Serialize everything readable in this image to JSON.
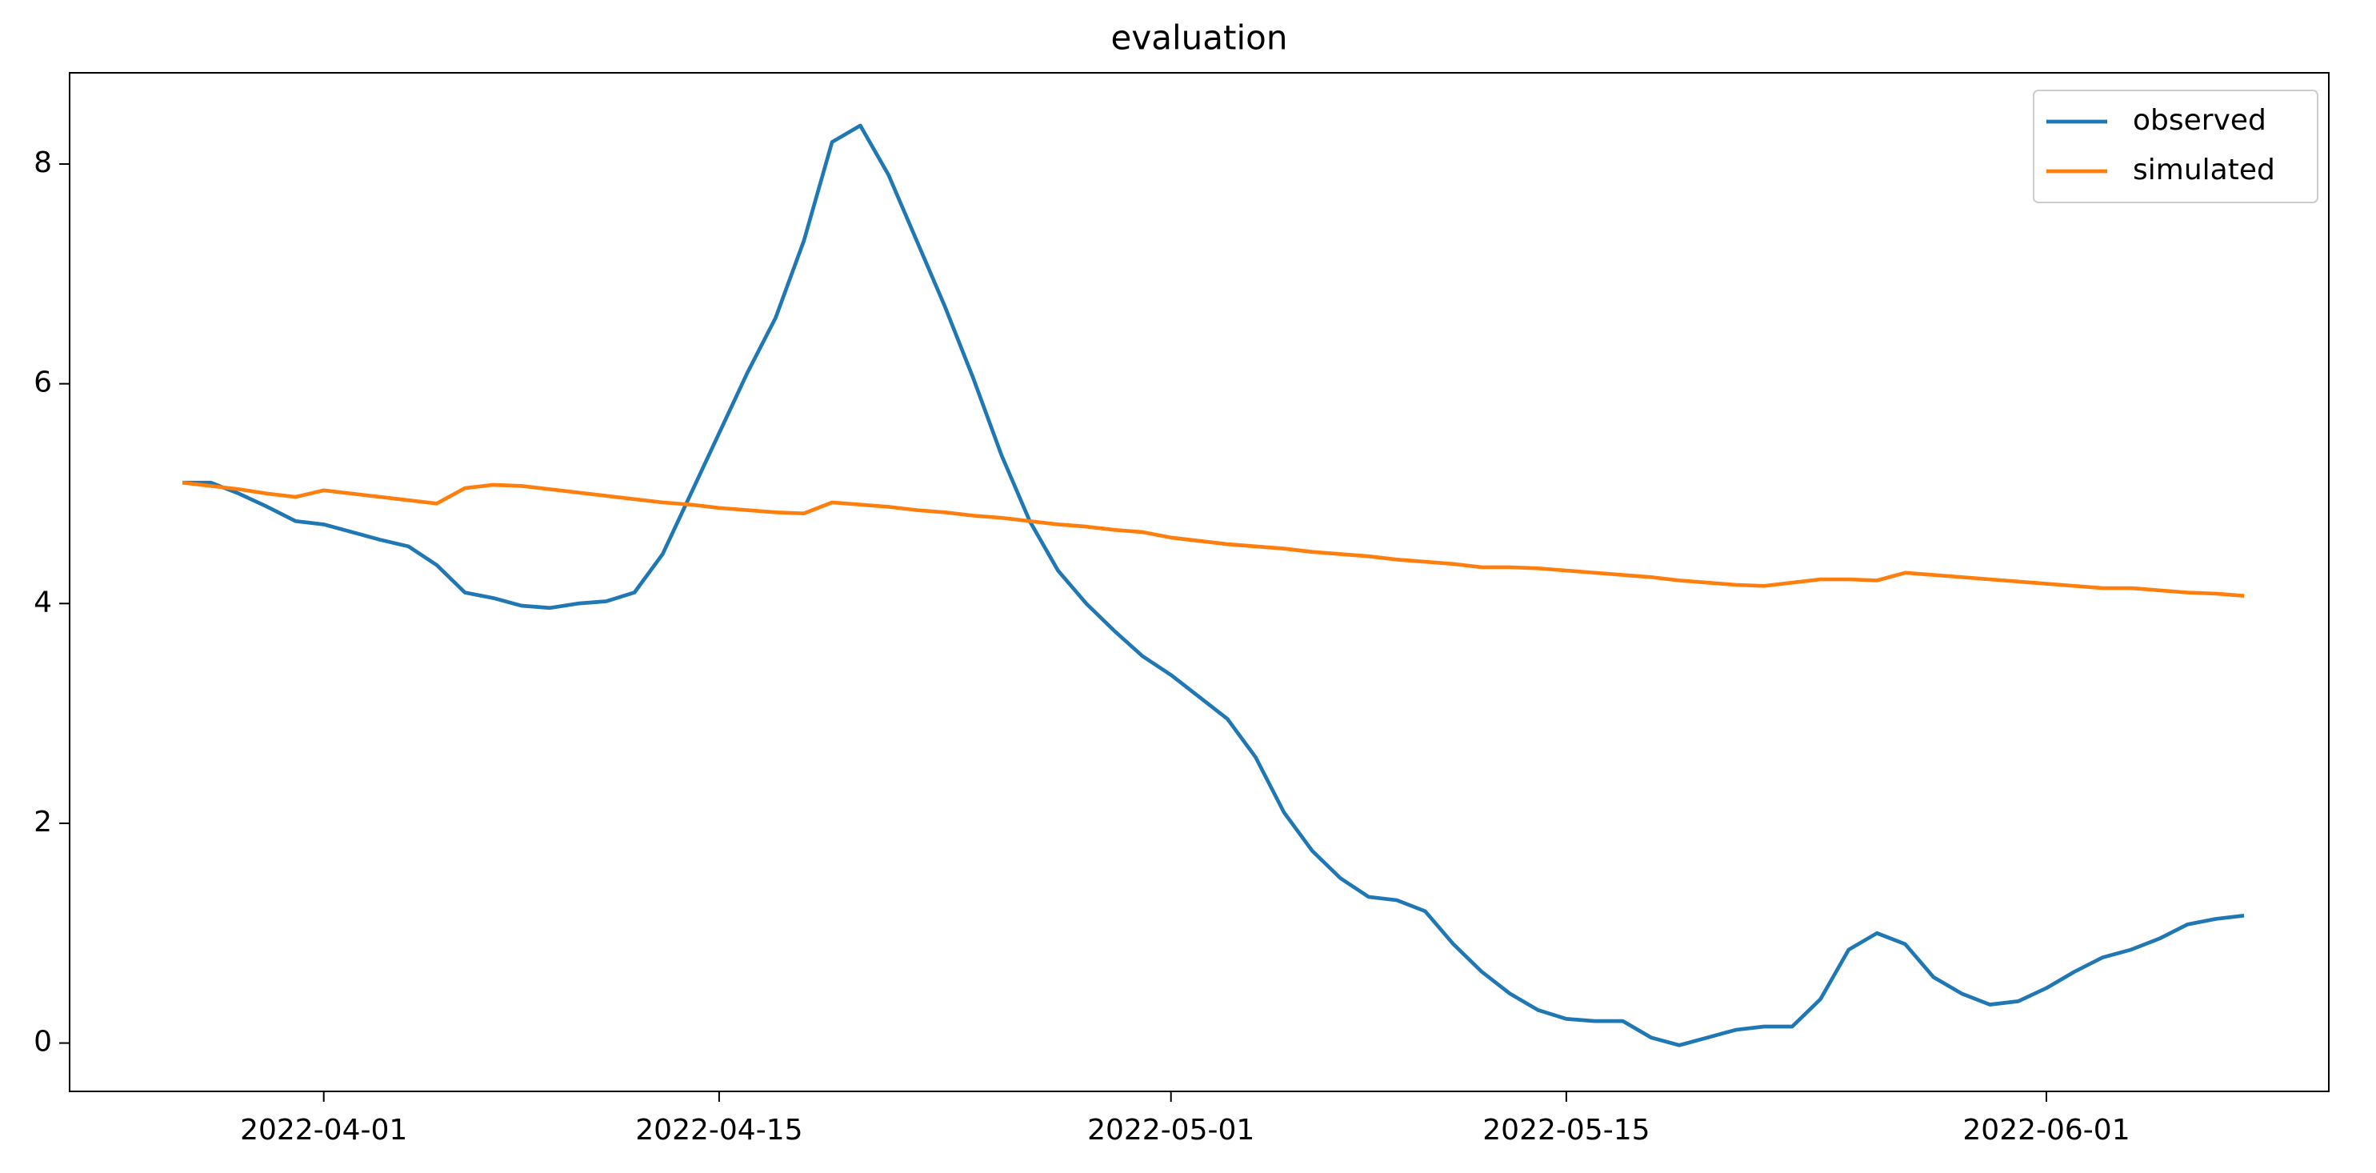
{
  "chart_data": {
    "type": "line",
    "title": "evaluation",
    "x": [
      "2022-03-27",
      "2022-03-28",
      "2022-03-29",
      "2022-03-30",
      "2022-03-31",
      "2022-04-01",
      "2022-04-02",
      "2022-04-03",
      "2022-04-04",
      "2022-04-05",
      "2022-04-06",
      "2022-04-07",
      "2022-04-08",
      "2022-04-09",
      "2022-04-10",
      "2022-04-11",
      "2022-04-12",
      "2022-04-13",
      "2022-04-14",
      "2022-04-15",
      "2022-04-16",
      "2022-04-17",
      "2022-04-18",
      "2022-04-19",
      "2022-04-20",
      "2022-04-21",
      "2022-04-22",
      "2022-04-23",
      "2022-04-24",
      "2022-04-25",
      "2022-04-26",
      "2022-04-27",
      "2022-04-28",
      "2022-04-29",
      "2022-04-30",
      "2022-05-01",
      "2022-05-02",
      "2022-05-03",
      "2022-05-04",
      "2022-05-05",
      "2022-05-06",
      "2022-05-07",
      "2022-05-08",
      "2022-05-09",
      "2022-05-10",
      "2022-05-11",
      "2022-05-12",
      "2022-05-13",
      "2022-05-14",
      "2022-05-15",
      "2022-05-16",
      "2022-05-17",
      "2022-05-18",
      "2022-05-19",
      "2022-05-20",
      "2022-05-21",
      "2022-05-22",
      "2022-05-23",
      "2022-05-24",
      "2022-05-25",
      "2022-05-26",
      "2022-05-27",
      "2022-05-28",
      "2022-05-29",
      "2022-05-30",
      "2022-05-31",
      "2022-06-01",
      "2022-06-02",
      "2022-06-03",
      "2022-06-04",
      "2022-06-05",
      "2022-06-06",
      "2022-06-07",
      "2022-06-08"
    ],
    "series": [
      {
        "name": "observed",
        "color": "#1f77b4",
        "values": [
          5.1,
          5.1,
          5.0,
          4.88,
          4.75,
          4.72,
          4.65,
          4.58,
          4.52,
          4.35,
          4.1,
          4.05,
          3.98,
          3.96,
          4.0,
          4.02,
          4.1,
          4.45,
          5.0,
          5.55,
          6.1,
          6.6,
          7.3,
          8.2,
          8.35,
          7.9,
          7.3,
          6.7,
          6.05,
          5.35,
          4.75,
          4.3,
          4.0,
          3.75,
          3.52,
          3.35,
          3.15,
          2.95,
          2.6,
          2.1,
          1.75,
          1.5,
          1.33,
          1.3,
          1.2,
          0.9,
          0.65,
          0.45,
          0.3,
          0.22,
          0.2,
          0.2,
          0.05,
          -0.02,
          0.05,
          0.12,
          0.15,
          0.15,
          0.4,
          0.85,
          1.0,
          0.9,
          0.6,
          0.45,
          0.35,
          0.38,
          0.5,
          0.65,
          0.78,
          0.85,
          0.95,
          1.08,
          1.13,
          1.16
        ]
      },
      {
        "name": "simulated",
        "color": "#ff7f0e",
        "values": [
          5.1,
          5.07,
          5.04,
          5.0,
          4.97,
          5.03,
          5.0,
          4.97,
          4.94,
          4.91,
          5.05,
          5.08,
          5.07,
          5.04,
          5.01,
          4.98,
          4.95,
          4.92,
          4.9,
          4.87,
          4.85,
          4.83,
          4.82,
          4.92,
          4.9,
          4.88,
          4.85,
          4.83,
          4.8,
          4.78,
          4.75,
          4.72,
          4.7,
          4.67,
          4.65,
          4.6,
          4.57,
          4.54,
          4.52,
          4.5,
          4.47,
          4.45,
          4.43,
          4.4,
          4.38,
          4.36,
          4.33,
          4.33,
          4.32,
          4.3,
          4.28,
          4.26,
          4.24,
          4.21,
          4.19,
          4.17,
          4.16,
          4.19,
          4.22,
          4.22,
          4.21,
          4.28,
          4.26,
          4.24,
          4.22,
          4.2,
          4.18,
          4.16,
          4.14,
          4.14,
          4.12,
          4.1,
          4.09,
          4.07
        ]
      }
    ],
    "xlim": [
      "2022-03-23",
      "2022-06-11"
    ],
    "xticks": [
      "2022-04-01",
      "2022-04-15",
      "2022-05-01",
      "2022-05-15",
      "2022-06-01"
    ],
    "ylim": [
      -0.44,
      8.83
    ],
    "yticks": [
      0,
      2,
      4,
      6,
      8
    ],
    "legend": "upper right"
  }
}
